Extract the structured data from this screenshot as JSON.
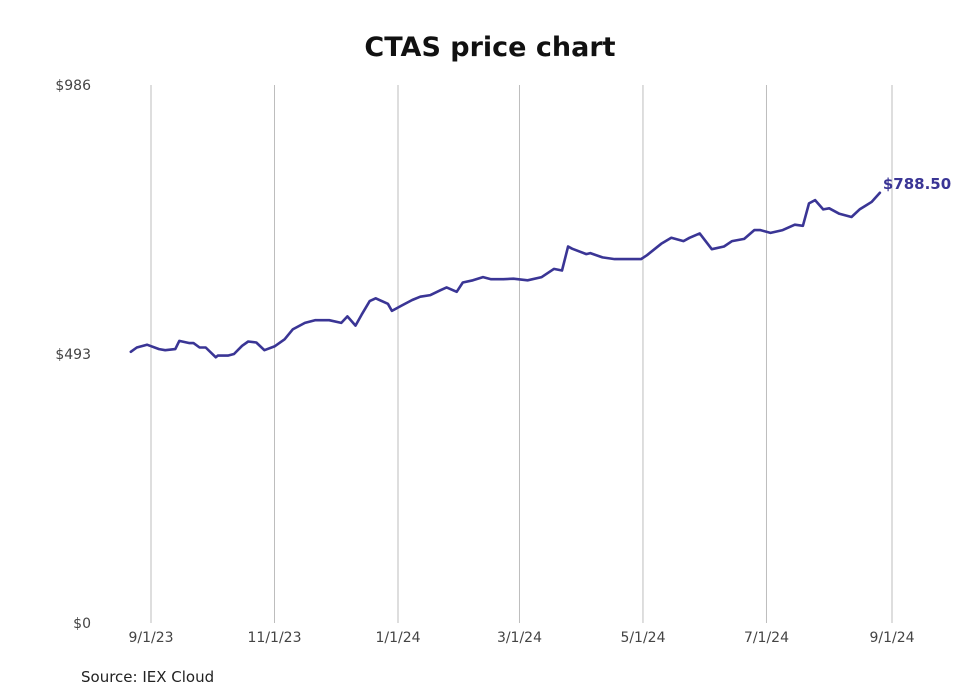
{
  "chart_data": {
    "type": "line",
    "title": "CTAS price chart",
    "source": "Source: IEX Cloud",
    "xlabel": "",
    "ylabel": "",
    "y_ticks": [
      {
        "value": 0,
        "label": "$0"
      },
      {
        "value": 493,
        "label": "$493"
      },
      {
        "value": 986,
        "label": "$986"
      }
    ],
    "ylim": [
      0,
      986
    ],
    "x_ticks": [
      "2023-09-01",
      "2023-11-01",
      "2024-01-01",
      "2024-03-01",
      "2024-05-01",
      "2024-07-01",
      "2024-09-01"
    ],
    "x_tick_labels": [
      "9/1/23",
      "11/1/23",
      "1/1/24",
      "3/1/24",
      "5/1/24",
      "7/1/24",
      "9/1/24"
    ],
    "grid": "vertical",
    "line_color": "#3a3595",
    "end_label": "$788.50",
    "series": [
      {
        "x": [
          "2023-08-22",
          "2023-08-25",
          "2023-08-30",
          "2023-09-05",
          "2023-09-08",
          "2023-09-13",
          "2023-09-15",
          "2023-09-20",
          "2023-09-22",
          "2023-09-25",
          "2023-09-28",
          "2023-10-03",
          "2023-10-04",
          "2023-10-09",
          "2023-10-12",
          "2023-10-16",
          "2023-10-19",
          "2023-10-23",
          "2023-10-27",
          "2023-11-01",
          "2023-11-06",
          "2023-11-10",
          "2023-11-16",
          "2023-11-21",
          "2023-11-28",
          "2023-12-04",
          "2023-12-07",
          "2023-12-11",
          "2023-12-14",
          "2023-12-18",
          "2023-12-21",
          "2023-12-27",
          "2023-12-29",
          "2024-01-03",
          "2024-01-08",
          "2024-01-12",
          "2024-01-17",
          "2024-01-22",
          "2024-01-25",
          "2024-01-30",
          "2024-02-02",
          "2024-02-07",
          "2024-02-12",
          "2024-02-16",
          "2024-02-22",
          "2024-02-27",
          "2024-03-05",
          "2024-03-12",
          "2024-03-18",
          "2024-03-22",
          "2024-03-25",
          "2024-03-27",
          "2024-04-03",
          "2024-04-05",
          "2024-04-11",
          "2024-04-17",
          "2024-04-23",
          "2024-04-30",
          "2024-05-03",
          "2024-05-10",
          "2024-05-15",
          "2024-05-21",
          "2024-05-24",
          "2024-05-29",
          "2024-06-04",
          "2024-06-10",
          "2024-06-14",
          "2024-06-20",
          "2024-06-25",
          "2024-06-28",
          "2024-07-03",
          "2024-07-09",
          "2024-07-15",
          "2024-07-19",
          "2024-07-22",
          "2024-07-25",
          "2024-07-29",
          "2024-08-01",
          "2024-08-06",
          "2024-08-12",
          "2024-08-16",
          "2024-08-19",
          "2024-08-22",
          "2024-08-26"
        ],
        "y": [
          497,
          505,
          510,
          502,
          500,
          502,
          517,
          513,
          513,
          505,
          505,
          487,
          490,
          490,
          493,
          508,
          516,
          514,
          500,
          507,
          520,
          538,
          550,
          555,
          555,
          550,
          562,
          545,
          565,
          590,
          595,
          585,
          572,
          582,
          592,
          598,
          601,
          610,
          615,
          607,
          624,
          628,
          634,
          630,
          630,
          631,
          628,
          634,
          649,
          646,
          690,
          686,
          676,
          678,
          670,
          667,
          667,
          667,
          674,
          695,
          706,
          700,
          706,
          714,
          685,
          690,
          700,
          704,
          720,
          720,
          715,
          720,
          730,
          728,
          769,
          775,
          758,
          760,
          750,
          744,
          758,
          765,
          772,
          788.5
        ]
      }
    ]
  }
}
